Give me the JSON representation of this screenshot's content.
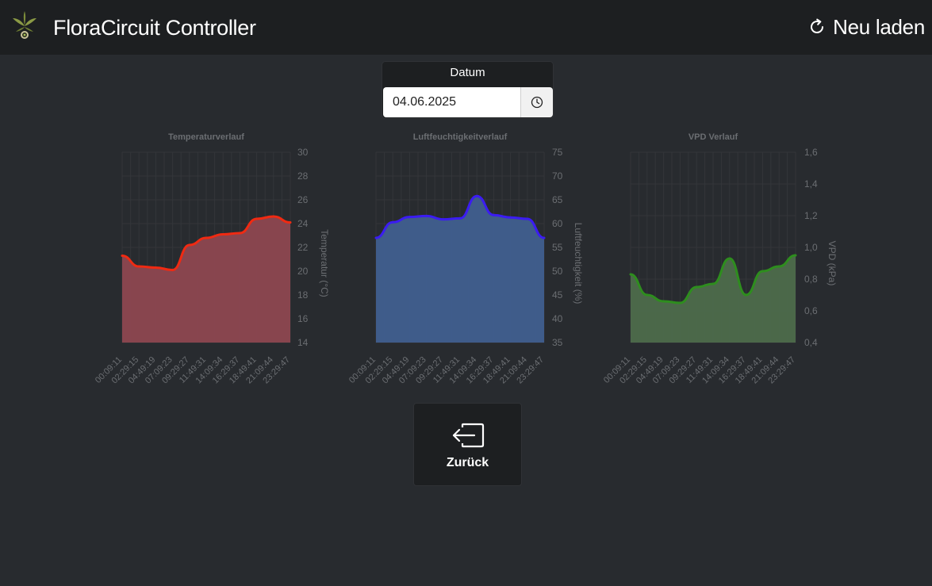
{
  "header": {
    "app_title": "FloraCircuit Controller",
    "reload_label": "Neu laden",
    "logo_icon": "plant-logo-icon",
    "reload_icon": "refresh-icon"
  },
  "date_picker": {
    "title": "Datum",
    "value": "04.06.2025",
    "clock_icon": "clock-icon"
  },
  "back": {
    "label": "Zurück",
    "icon": "exit-icon"
  },
  "time_labels": [
    "00:09:11",
    "02:29:15",
    "04:49:19",
    "07:09:23",
    "09:29:27",
    "11:49:31",
    "14:09:34",
    "16:29:37",
    "18:49:41",
    "21:09:44",
    "23:29:47"
  ],
  "chart_data": [
    {
      "type": "area",
      "title": "Temperaturverlauf",
      "ylabel": "Temperatur (°C)",
      "ylim": [
        14,
        30
      ],
      "yticks": [
        "14",
        "16",
        "18",
        "20",
        "22",
        "24",
        "26",
        "28",
        "30"
      ],
      "x": [
        "00:09:11",
        "02:29:15",
        "04:49:19",
        "07:09:23",
        "09:29:27",
        "11:49:31",
        "14:09:34",
        "16:29:37",
        "18:49:41",
        "21:09:44",
        "23:29:47"
      ],
      "line_color": "#f02a12",
      "fill_color": "#8d4750",
      "grid": true,
      "legend": "none",
      "series": [
        {
          "values": [
            21.3,
            20.4,
            20.3,
            20.1,
            22.2,
            22.8,
            23.1,
            23.2,
            24.4,
            24.6,
            24.1
          ]
        }
      ]
    },
    {
      "type": "area",
      "title": "Luftfeuchtigkeitverlauf",
      "ylabel": "Luftfeuchtigkeit (%)",
      "ylim": [
        35,
        75
      ],
      "yticks": [
        "35",
        "40",
        "45",
        "50",
        "55",
        "60",
        "65",
        "70",
        "75"
      ],
      "x": [
        "00:09:11",
        "02:29:15",
        "04:49:19",
        "07:09:23",
        "09:29:27",
        "11:49:31",
        "14:09:34",
        "16:29:37",
        "18:49:41",
        "21:09:44",
        "23:29:47"
      ],
      "line_color": "#3b1cf2",
      "fill_color": "#405f8f",
      "grid": true,
      "legend": "none",
      "series": [
        {
          "values": [
            57.0,
            60.3,
            61.4,
            61.6,
            60.9,
            61.1,
            65.8,
            61.8,
            61.3,
            61.0,
            57.0
          ]
        }
      ]
    },
    {
      "type": "area",
      "title": "VPD Verlauf",
      "ylabel": "VPD (kPa)",
      "ylim": [
        0.4,
        1.6
      ],
      "yticks": [
        "0,4",
        "0,6",
        "0,8",
        "1,0",
        "1,2",
        "1,4",
        "1,6"
      ],
      "x": [
        "00:09:11",
        "02:29:15",
        "04:49:19",
        "07:09:23",
        "09:29:27",
        "11:49:31",
        "14:09:34",
        "16:29:37",
        "18:49:41",
        "21:09:44",
        "23:29:47"
      ],
      "line_color": "#2e8d1e",
      "fill_color": "#4d6b4b",
      "grid": true,
      "legend": "none",
      "series": [
        {
          "values": [
            0.83,
            0.7,
            0.66,
            0.65,
            0.75,
            0.77,
            0.93,
            0.7,
            0.85,
            0.88,
            0.95
          ]
        }
      ]
    }
  ]
}
